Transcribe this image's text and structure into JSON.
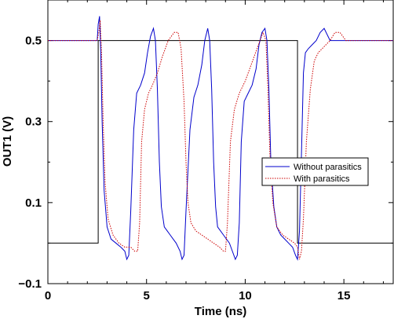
{
  "chart_data": {
    "type": "line",
    "xlabel": "Time (ns)",
    "ylabel": "OUT1 (V)",
    "xlim": [
      0,
      17.5
    ],
    "ylim": [
      -0.1,
      0.6
    ],
    "xticks": [
      0,
      5,
      10,
      15
    ],
    "yticks": [
      -0.1,
      0.1,
      0.3,
      0.5
    ],
    "xtick_labels": [
      "0",
      "5",
      "10",
      "15"
    ],
    "ytick_labels": [
      "−0.1",
      "0.1",
      "0.3",
      "0.5"
    ],
    "grid": false,
    "legend_position": "center-right",
    "series": [
      {
        "name": "",
        "color": "#000000",
        "style": "solid",
        "x": [
          0,
          2.55,
          2.55,
          12.65,
          12.65,
          17.5
        ],
        "y": [
          0.0,
          0.0,
          0.5,
          0.5,
          0.0,
          0.0
        ]
      },
      {
        "name": "Without parasitics",
        "color": "#0000cc",
        "style": "solid",
        "x": [
          0,
          2.5,
          2.55,
          2.62,
          2.68,
          2.75,
          2.85,
          3.0,
          3.2,
          3.45,
          3.7,
          3.9,
          4.0,
          4.1,
          4.2,
          4.35,
          4.5,
          4.7,
          4.9,
          5.05,
          5.2,
          5.35,
          5.45,
          5.55,
          5.65,
          5.75,
          5.9,
          6.05,
          6.2,
          6.35,
          6.5,
          6.7,
          6.8,
          6.9,
          7.0,
          7.2,
          7.4,
          7.6,
          7.8,
          7.95,
          8.1,
          8.2,
          8.3,
          8.4,
          8.5,
          8.6,
          8.75,
          8.9,
          9.05,
          9.2,
          9.35,
          9.5,
          9.6,
          9.7,
          9.8,
          9.95,
          10.15,
          10.35,
          10.55,
          10.7,
          10.85,
          11.0,
          11.1,
          11.2,
          11.3,
          11.45,
          11.6,
          11.8,
          12.0,
          12.2,
          12.4,
          12.55,
          12.65,
          12.75,
          12.85,
          12.95,
          13.05,
          13.2,
          13.4,
          13.6,
          13.8,
          14.0,
          14.3,
          14.7,
          15.0,
          17.5
        ],
        "y": [
          0.5,
          0.5,
          0.54,
          0.56,
          0.47,
          0.3,
          0.13,
          0.04,
          0.01,
          -0.0,
          -0.01,
          -0.02,
          -0.04,
          -0.03,
          0.08,
          0.28,
          0.37,
          0.39,
          0.42,
          0.47,
          0.51,
          0.53,
          0.5,
          0.38,
          0.2,
          0.09,
          0.04,
          0.03,
          0.02,
          0.01,
          -0.0,
          -0.02,
          -0.04,
          -0.03,
          0.08,
          0.28,
          0.36,
          0.39,
          0.44,
          0.5,
          0.53,
          0.5,
          0.38,
          0.2,
          0.09,
          0.04,
          0.03,
          0.02,
          0.01,
          0.0,
          -0.02,
          -0.04,
          -0.03,
          0.05,
          0.25,
          0.35,
          0.37,
          0.39,
          0.43,
          0.49,
          0.52,
          0.53,
          0.5,
          0.38,
          0.2,
          0.09,
          0.04,
          0.02,
          0.01,
          0.0,
          -0.01,
          -0.03,
          -0.04,
          0.03,
          0.22,
          0.42,
          0.47,
          0.48,
          0.49,
          0.5,
          0.52,
          0.53,
          0.5,
          0.5,
          0.5,
          0.5
        ]
      },
      {
        "name": "With parasitics",
        "color": "#cc0000",
        "style": "dotted",
        "x": [
          0,
          2.5,
          2.58,
          2.65,
          2.72,
          2.8,
          2.9,
          3.05,
          3.3,
          3.6,
          3.9,
          4.2,
          4.4,
          4.55,
          4.65,
          4.75,
          4.9,
          5.1,
          5.3,
          5.55,
          5.8,
          6.1,
          6.4,
          6.6,
          6.75,
          6.9,
          7.0,
          7.1,
          7.25,
          7.5,
          7.8,
          8.1,
          8.4,
          8.7,
          8.9,
          9.0,
          9.1,
          9.25,
          9.45,
          9.7,
          10.0,
          10.3,
          10.6,
          10.9,
          11.05,
          11.15,
          11.25,
          11.4,
          11.6,
          11.9,
          12.2,
          12.5,
          12.65,
          12.75,
          12.85,
          12.95,
          13.1,
          13.3,
          13.5,
          13.7,
          13.9,
          14.1,
          14.3,
          14.55,
          14.8,
          15.1,
          15.5,
          17.5
        ],
        "y": [
          0.5,
          0.5,
          0.52,
          0.55,
          0.47,
          0.3,
          0.15,
          0.06,
          0.02,
          0.0,
          -0.01,
          -0.01,
          -0.02,
          -0.02,
          0.05,
          0.25,
          0.33,
          0.37,
          0.39,
          0.42,
          0.46,
          0.5,
          0.52,
          0.52,
          0.48,
          0.35,
          0.2,
          0.1,
          0.05,
          0.03,
          0.02,
          0.01,
          0.0,
          -0.01,
          -0.02,
          -0.02,
          0.05,
          0.25,
          0.33,
          0.37,
          0.4,
          0.44,
          0.48,
          0.52,
          0.5,
          0.38,
          0.22,
          0.1,
          0.04,
          0.02,
          0.01,
          0.0,
          -0.01,
          -0.04,
          -0.02,
          0.06,
          0.25,
          0.38,
          0.45,
          0.47,
          0.48,
          0.49,
          0.5,
          0.52,
          0.52,
          0.5,
          0.5,
          0.5
        ]
      }
    ]
  }
}
